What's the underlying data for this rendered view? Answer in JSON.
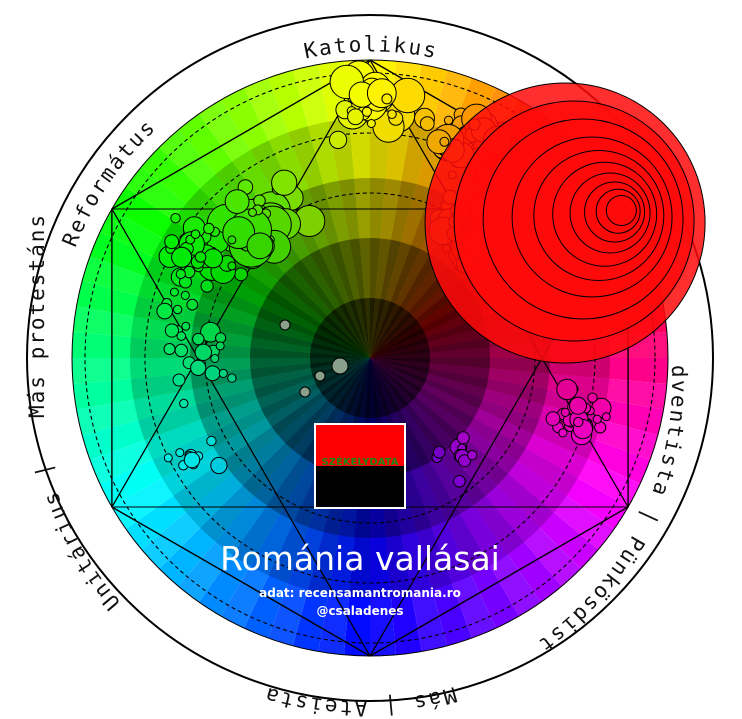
{
  "chart_data": {
    "type": "scatter",
    "title": "Románia vallásai",
    "source": "adat: recensamantromania.ro",
    "author": "@csaladenes",
    "logo_text": "SZÉKELYDATA",
    "axes": [
      {
        "name": "Katolikus",
        "color": "#ffff00"
      },
      {
        "name": "Adventista | Pünkösdista",
        "color": "#ff00ff"
      },
      {
        "name": "Más | Ateista",
        "color": "#0000ff"
      },
      {
        "name": "Unitárius",
        "color": "#00ffff"
      },
      {
        "name": "Más protestáns",
        "color": "#00ff00"
      },
      {
        "name": "Református",
        "color": "#00ff00"
      },
      {
        "name": "Ortodox",
        "color": "#ff0000"
      }
    ],
    "ring_labels": {
      "top": "Katolikus",
      "right": "Adventista | Pünkösdista",
      "bottom": "Más | Ateista",
      "left_lower": "Unitárius |",
      "left_mid": "Más protestáns",
      "left_upper": "Református"
    }
  }
}
